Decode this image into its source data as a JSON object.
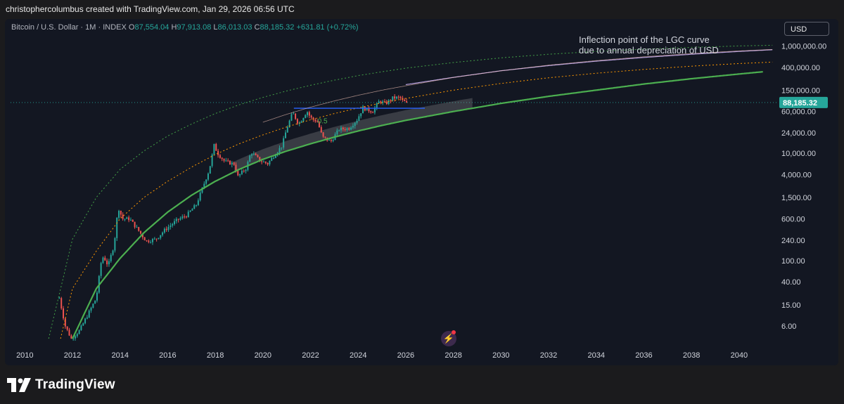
{
  "header": {
    "attribution": "christophercolumbus created with TradingView.com, Jan 29, 2026 06:56 UTC"
  },
  "legend": {
    "symbol": "Bitcoin / U.S. Dollar · 1M · INDEX",
    "open_label": "O",
    "open": "87,554.04",
    "high_label": "H",
    "high": "97,913.08",
    "low_label": "L",
    "low": "86,013.03",
    "close_label": "C",
    "close": "88,185.32",
    "change": "+631.81 (+0.72%)"
  },
  "currency_button": "USD",
  "annotation": "Inflection point of the LGC curve\ndue to annual depreciation of USD",
  "fib_label": "0.5",
  "brand": {
    "name": "TradingView",
    "logo_icon": "tradingview-logo-icon"
  },
  "colors": {
    "background": "#131722",
    "up": "#26a69a",
    "down": "#ef5350",
    "support_curve": "#4caf50",
    "mid_curve": "#ff9800",
    "top_curve": "#43a047",
    "upper_curve": "#b39ddb",
    "horizontal_line": "#2962ff"
  },
  "chart_data": {
    "type": "candlestick",
    "scale": "log",
    "interval": "1M",
    "last_price": 88185.32,
    "last_price_label": "88,185.32",
    "xlim": [
      2009.4,
      2041.6
    ],
    "ylim": [
      3.2,
      2500000
    ],
    "x_ticks": [
      {
        "year": 2010,
        "label": "2010"
      },
      {
        "year": 2012,
        "label": "2012"
      },
      {
        "year": 2014,
        "label": "2014"
      },
      {
        "year": 2016,
        "label": "2016"
      },
      {
        "year": 2018,
        "label": "2018"
      },
      {
        "year": 2020,
        "label": "2020"
      },
      {
        "year": 2022,
        "label": "2022"
      },
      {
        "year": 2024,
        "label": "2024"
      },
      {
        "year": 2026,
        "label": "2026"
      },
      {
        "year": 2028,
        "label": "2028"
      },
      {
        "year": 2030,
        "label": "2030"
      },
      {
        "year": 2032,
        "label": "2032"
      },
      {
        "year": 2034,
        "label": "2034"
      },
      {
        "year": 2036,
        "label": "2036"
      },
      {
        "year": 2038,
        "label": "2038"
      },
      {
        "year": 2040,
        "label": "2040"
      }
    ],
    "y_ticks": [
      {
        "value": 1000000,
        "label": "1,000,000.00"
      },
      {
        "value": 400000,
        "label": "400,000.00"
      },
      {
        "value": 150000,
        "label": "150,000.00"
      },
      {
        "value": 60000,
        "label": "60,000.00"
      },
      {
        "value": 24000,
        "label": "24,000.00"
      },
      {
        "value": 10000,
        "label": "10,000.00"
      },
      {
        "value": 4000,
        "label": "4,000.00"
      },
      {
        "value": 1500,
        "label": "1,500.00"
      },
      {
        "value": 600,
        "label": "600.00"
      },
      {
        "value": 240,
        "label": "240.00"
      },
      {
        "value": 100,
        "label": "100.00"
      },
      {
        "value": 40,
        "label": "40.00"
      },
      {
        "value": 15,
        "label": "15.00"
      },
      {
        "value": 6,
        "label": "6.00"
      }
    ],
    "price_anchors": [
      [
        2011.45,
        20
      ],
      [
        2011.7,
        6
      ],
      [
        2011.95,
        3.5
      ],
      [
        2012.3,
        5
      ],
      [
        2012.7,
        11
      ],
      [
        2013.0,
        20
      ],
      [
        2013.2,
        90
      ],
      [
        2013.3,
        120
      ],
      [
        2013.5,
        80
      ],
      [
        2013.75,
        200
      ],
      [
        2013.92,
        1000
      ],
      [
        2014.1,
        600
      ],
      [
        2014.4,
        600
      ],
      [
        2014.8,
        350
      ],
      [
        2015.1,
        230
      ],
      [
        2015.5,
        250
      ],
      [
        2015.9,
        380
      ],
      [
        2016.4,
        570
      ],
      [
        2016.8,
        700
      ],
      [
        2017.2,
        1100
      ],
      [
        2017.5,
        2500
      ],
      [
        2017.75,
        5000
      ],
      [
        2017.95,
        14000
      ],
      [
        2018.1,
        10000
      ],
      [
        2018.4,
        7000
      ],
      [
        2018.8,
        6300
      ],
      [
        2018.95,
        3700
      ],
      [
        2019.3,
        5300
      ],
      [
        2019.5,
        10500
      ],
      [
        2019.9,
        7200
      ],
      [
        2020.2,
        6400
      ],
      [
        2020.5,
        9500
      ],
      [
        2020.8,
        13800
      ],
      [
        2021.0,
        29000
      ],
      [
        2021.25,
        57000
      ],
      [
        2021.5,
        35000
      ],
      [
        2021.85,
        61000
      ],
      [
        2022.0,
        46000
      ],
      [
        2022.3,
        38000
      ],
      [
        2022.5,
        20000
      ],
      [
        2022.85,
        16500
      ],
      [
        2023.2,
        28000
      ],
      [
        2023.6,
        29000
      ],
      [
        2023.95,
        42000
      ],
      [
        2024.2,
        70000
      ],
      [
        2024.6,
        60000
      ],
      [
        2024.9,
        95000
      ],
      [
        2025.15,
        84000
      ],
      [
        2025.45,
        107000
      ],
      [
        2025.75,
        110000
      ],
      [
        2025.9,
        92000
      ],
      [
        2026.05,
        88185.32
      ]
    ],
    "series": [
      {
        "type": "solid",
        "points": [
          [
            2012.0,
            3.5
          ],
          [
            2013.0,
            30
          ],
          [
            2014.0,
            110
          ],
          [
            2015.0,
            330
          ],
          [
            2016.0,
            800
          ],
          [
            2017.0,
            1650
          ],
          [
            2018.0,
            3000
          ],
          [
            2019.0,
            5000
          ],
          [
            2020.0,
            7700
          ],
          [
            2021.0,
            11000
          ],
          [
            2022.0,
            15000
          ],
          [
            2023.0,
            20000
          ],
          [
            2024.0,
            26000
          ],
          [
            2025.0,
            33000
          ],
          [
            2026.0,
            41000
          ],
          [
            2028.0,
            60000
          ],
          [
            2030.0,
            85000
          ],
          [
            2032.0,
            115000
          ],
          [
            2034.0,
            150000
          ],
          [
            2036.0,
            195000
          ],
          [
            2038.0,
            245000
          ],
          [
            2040.0,
            300000
          ],
          [
            2041.0,
            330000
          ]
        ]
      },
      {
        "type": "dotted",
        "points": [
          [
            2011.5,
            3.5
          ],
          [
            2012.0,
            30
          ],
          [
            2013.0,
            150
          ],
          [
            2014.0,
            600
          ],
          [
            2015.0,
            1500
          ],
          [
            2016.0,
            3000
          ],
          [
            2017.0,
            5500
          ],
          [
            2018.0,
            9500
          ],
          [
            2019.0,
            15000
          ],
          [
            2020.0,
            22000
          ],
          [
            2021.0,
            31000
          ],
          [
            2022.0,
            42000
          ],
          [
            2023.0,
            55000
          ],
          [
            2024.0,
            70000
          ],
          [
            2025.0,
            87000
          ],
          [
            2026.0,
            105000
          ],
          [
            2028.0,
            150000
          ],
          [
            2030.0,
            200000
          ],
          [
            2032.0,
            255000
          ],
          [
            2034.0,
            310000
          ],
          [
            2036.0,
            365000
          ],
          [
            2038.0,
            420000
          ],
          [
            2040.0,
            470000
          ],
          [
            2041.4,
            500000
          ]
        ]
      },
      {
        "type": "dotted",
        "points": [
          [
            2011.0,
            3.5
          ],
          [
            2012.0,
            250
          ],
          [
            2013.0,
            1500
          ],
          [
            2014.0,
            5000
          ],
          [
            2015.0,
            11000
          ],
          [
            2016.0,
            21000
          ],
          [
            2017.0,
            35000
          ],
          [
            2018.0,
            55000
          ],
          [
            2019.0,
            80000
          ],
          [
            2020.0,
            110000
          ],
          [
            2021.0,
            145000
          ],
          [
            2022.0,
            185000
          ],
          [
            2023.0,
            230000
          ],
          [
            2024.0,
            280000
          ],
          [
            2025.0,
            330000
          ],
          [
            2026.0,
            385000
          ],
          [
            2028.0,
            490000
          ],
          [
            2030.0,
            600000
          ],
          [
            2032.0,
            700000
          ],
          [
            2034.0,
            790000
          ],
          [
            2036.0,
            870000
          ],
          [
            2038.0,
            940000
          ],
          [
            2040.0,
            1000000
          ],
          [
            2041.4,
            1030000
          ]
        ]
      },
      {
        "type": "solid",
        "points": [
          [
            2026.0,
            190000
          ],
          [
            2028.0,
            260000
          ],
          [
            2030.0,
            345000
          ],
          [
            2032.0,
            430000
          ],
          [
            2034.0,
            520000
          ],
          [
            2036.0,
            610000
          ],
          [
            2038.0,
            700000
          ],
          [
            2040.0,
            790000
          ],
          [
            2041.4,
            850000
          ]
        ]
      },
      {
        "type": "horizontal",
        "x_start": 2021.3,
        "x_end": 2026.8,
        "y": 69000
      }
    ]
  }
}
